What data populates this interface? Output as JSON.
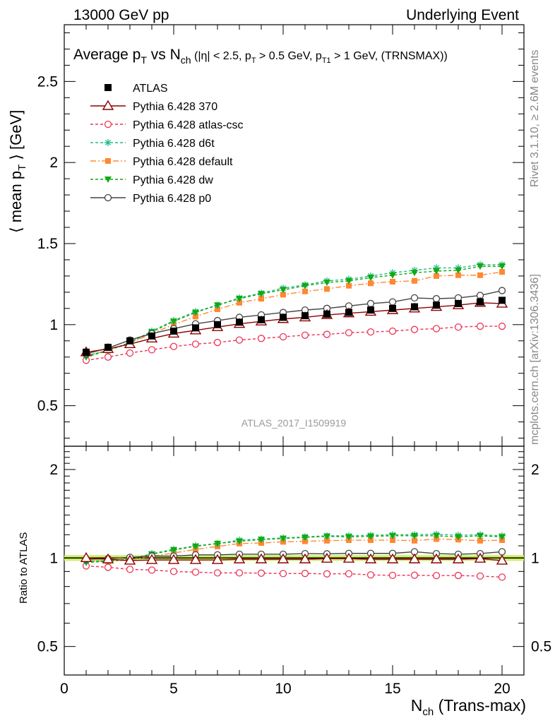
{
  "header": {
    "left": "13000 GeV pp",
    "right": "Underlying Event"
  },
  "side": {
    "rivet": "Rivet 3.1.10, ≥ 2.6M events",
    "mcplots": "mcplots.cern.ch [arXiv:1306.3436]"
  },
  "watermark": "ATLAS_2017_I1509919",
  "title": {
    "main": "Average p",
    "main_sub": "T",
    "vs": " vs N",
    "vs_sub": "ch",
    "cut1": " (|η| < 2.5, p",
    "cut1_sub": "T",
    "cut2": " > 0.5 GeV, p",
    "cut2_sub": "T1",
    "cut3": " > 1 GeV, (TRNSMAX))"
  },
  "ylabel_main": {
    "pre": "⟨ mean p",
    "sub": "T",
    "post": " ⟩ [GeV]"
  },
  "ylabel_ratio": "Ratio to ATLAS",
  "xlabel": {
    "pre": "N",
    "sub": "ch",
    "post": " (Trans-max)"
  },
  "colors": {
    "ATLAS": "#000000",
    "370": "#8b0000",
    "atlas-csc": "#ee3355",
    "d6t": "#22bb88",
    "default": "#ff8833",
    "dw": "#11aa11",
    "p0": "#444444",
    "band": "#ccee66"
  },
  "chart_data": [
    {
      "type": "line",
      "panel": "main",
      "xlim": [
        0,
        21
      ],
      "ylim": [
        0.25,
        2.85
      ],
      "yticks": [
        0.5,
        1,
        1.5,
        2,
        2.5
      ],
      "ytick_labels": [
        "0.5",
        "1",
        "1.5",
        "2",
        "2.5"
      ],
      "legend_position": "top-left",
      "x": [
        1,
        2,
        3,
        4,
        5,
        6,
        7,
        8,
        9,
        10,
        11,
        12,
        13,
        14,
        15,
        16,
        17,
        18,
        19,
        20
      ],
      "series": [
        {
          "name": "ATLAS",
          "key": "ATLAS",
          "marker": "square",
          "values": [
            0.83,
            0.86,
            0.9,
            0.93,
            0.96,
            0.98,
            1.0,
            1.015,
            1.03,
            1.045,
            1.055,
            1.065,
            1.075,
            1.09,
            1.1,
            1.11,
            1.12,
            1.13,
            1.14,
            1.15
          ]
        },
        {
          "name": "Pythia 6.428 370",
          "key": "370",
          "marker": "triangle",
          "values": [
            0.83,
            0.85,
            0.88,
            0.915,
            0.945,
            0.965,
            0.985,
            1.005,
            1.02,
            1.035,
            1.045,
            1.06,
            1.07,
            1.08,
            1.09,
            1.1,
            1.11,
            1.12,
            1.135,
            1.13
          ]
        },
        {
          "name": "Pythia 6.428 atlas-csc",
          "key": "atlas-csc",
          "marker": "circle-open",
          "values": [
            0.78,
            0.8,
            0.825,
            0.845,
            0.865,
            0.88,
            0.89,
            0.905,
            0.915,
            0.925,
            0.935,
            0.94,
            0.95,
            0.955,
            0.96,
            0.97,
            0.975,
            0.985,
            0.99,
            0.99
          ]
        },
        {
          "name": "Pythia 6.428 d6t",
          "key": "d6t",
          "marker": "star",
          "values": [
            0.81,
            0.84,
            0.89,
            0.96,
            1.025,
            1.08,
            1.12,
            1.165,
            1.195,
            1.225,
            1.245,
            1.27,
            1.28,
            1.3,
            1.32,
            1.335,
            1.35,
            1.35,
            1.37,
            1.37
          ]
        },
        {
          "name": "Pythia 6.428 default",
          "key": "default",
          "marker": "square-small",
          "values": [
            0.81,
            0.84,
            0.885,
            0.945,
            1.0,
            1.05,
            1.095,
            1.135,
            1.16,
            1.185,
            1.205,
            1.22,
            1.24,
            1.255,
            1.265,
            1.27,
            1.3,
            1.305,
            1.305,
            1.325
          ]
        },
        {
          "name": "Pythia 6.428 dw",
          "key": "dw",
          "marker": "triangle-down",
          "values": [
            0.8,
            0.84,
            0.89,
            0.955,
            1.02,
            1.075,
            1.12,
            1.16,
            1.19,
            1.215,
            1.24,
            1.26,
            1.27,
            1.29,
            1.305,
            1.32,
            1.33,
            1.335,
            1.36,
            1.36
          ]
        },
        {
          "name": "Pythia 6.428 p0",
          "key": "p0",
          "marker": "circle-open",
          "values": [
            0.82,
            0.855,
            0.905,
            0.945,
            0.975,
            1.005,
            1.025,
            1.045,
            1.06,
            1.075,
            1.09,
            1.1,
            1.115,
            1.13,
            1.14,
            1.165,
            1.16,
            1.165,
            1.18,
            1.21
          ]
        }
      ]
    },
    {
      "type": "line",
      "panel": "ratio",
      "ylabel": "Ratio to ATLAS",
      "xlim": [
        0,
        21
      ],
      "ylim": [
        0.4,
        2.4
      ],
      "yscale": "log",
      "yticks": [
        0.5,
        1,
        2
      ],
      "ytick_labels": [
        "0.5",
        "1",
        "2"
      ],
      "xticks": [
        0,
        5,
        10,
        15,
        20
      ],
      "xtick_labels": [
        "0",
        "5",
        "10",
        "15",
        "20"
      ],
      "x": [
        1,
        2,
        3,
        4,
        5,
        6,
        7,
        8,
        9,
        10,
        11,
        12,
        13,
        14,
        15,
        16,
        17,
        18,
        19,
        20
      ],
      "series": [
        {
          "name": "Pythia 6.428 370",
          "key": "370",
          "marker": "triangle",
          "values": [
            1.0,
            0.99,
            0.98,
            0.985,
            0.985,
            0.985,
            0.985,
            0.99,
            0.99,
            0.99,
            0.99,
            0.995,
            0.995,
            0.99,
            0.99,
            0.99,
            0.99,
            0.99,
            0.995,
            0.98
          ]
        },
        {
          "name": "Pythia 6.428 atlas-csc",
          "key": "atlas-csc",
          "marker": "circle-open",
          "values": [
            0.94,
            0.93,
            0.915,
            0.91,
            0.9,
            0.895,
            0.89,
            0.89,
            0.888,
            0.885,
            0.886,
            0.883,
            0.884,
            0.876,
            0.873,
            0.874,
            0.871,
            0.872,
            0.868,
            0.861
          ]
        },
        {
          "name": "Pythia 6.428 d6t",
          "key": "d6t",
          "marker": "star",
          "values": [
            0.975,
            0.98,
            0.99,
            1.035,
            1.07,
            1.1,
            1.12,
            1.15,
            1.16,
            1.17,
            1.18,
            1.19,
            1.19,
            1.195,
            1.2,
            1.2,
            1.205,
            1.195,
            1.2,
            1.19
          ]
        },
        {
          "name": "Pythia 6.428 default",
          "key": "default",
          "marker": "square-small",
          "values": [
            0.975,
            0.975,
            0.985,
            1.015,
            1.04,
            1.07,
            1.095,
            1.12,
            1.125,
            1.135,
            1.14,
            1.145,
            1.15,
            1.15,
            1.15,
            1.145,
            1.16,
            1.155,
            1.145,
            1.15
          ]
        },
        {
          "name": "Pythia 6.428 dw",
          "key": "dw",
          "marker": "triangle-down",
          "values": [
            0.965,
            0.975,
            0.99,
            1.03,
            1.065,
            1.095,
            1.12,
            1.14,
            1.155,
            1.165,
            1.175,
            1.185,
            1.18,
            1.185,
            1.19,
            1.19,
            1.19,
            1.18,
            1.19,
            1.18
          ]
        },
        {
          "name": "Pythia 6.428 p0",
          "key": "p0",
          "marker": "circle-open",
          "values": [
            0.99,
            0.995,
            1.005,
            1.015,
            1.015,
            1.025,
            1.025,
            1.03,
            1.03,
            1.03,
            1.035,
            1.033,
            1.037,
            1.037,
            1.037,
            1.05,
            1.035,
            1.03,
            1.035,
            1.05
          ]
        }
      ]
    }
  ]
}
